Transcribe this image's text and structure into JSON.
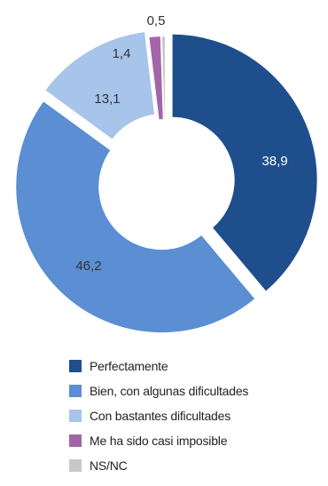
{
  "chart_data": {
    "type": "pie",
    "donut": true,
    "categories": [
      "Perfectamente",
      "Bien, con algunas dificultades",
      "Con bastantes dificultades",
      "Me ha sido casi imposible",
      "NS/NC"
    ],
    "values": [
      38.9,
      46.2,
      13.1,
      1.4,
      0.5
    ],
    "value_labels": [
      "38,9",
      "46,2",
      "13,1",
      "1,4",
      "0,5"
    ],
    "colors": [
      "#1f4e8c",
      "#5b8ed3",
      "#a7c4ea",
      "#a365a8",
      "#c8c8c8"
    ],
    "label_colors": [
      "#ffffff",
      "#333333",
      "#333333",
      "#333333",
      "#333333"
    ],
    "exploded_slices": [
      0,
      1,
      2
    ],
    "legend_position": "bottom"
  }
}
